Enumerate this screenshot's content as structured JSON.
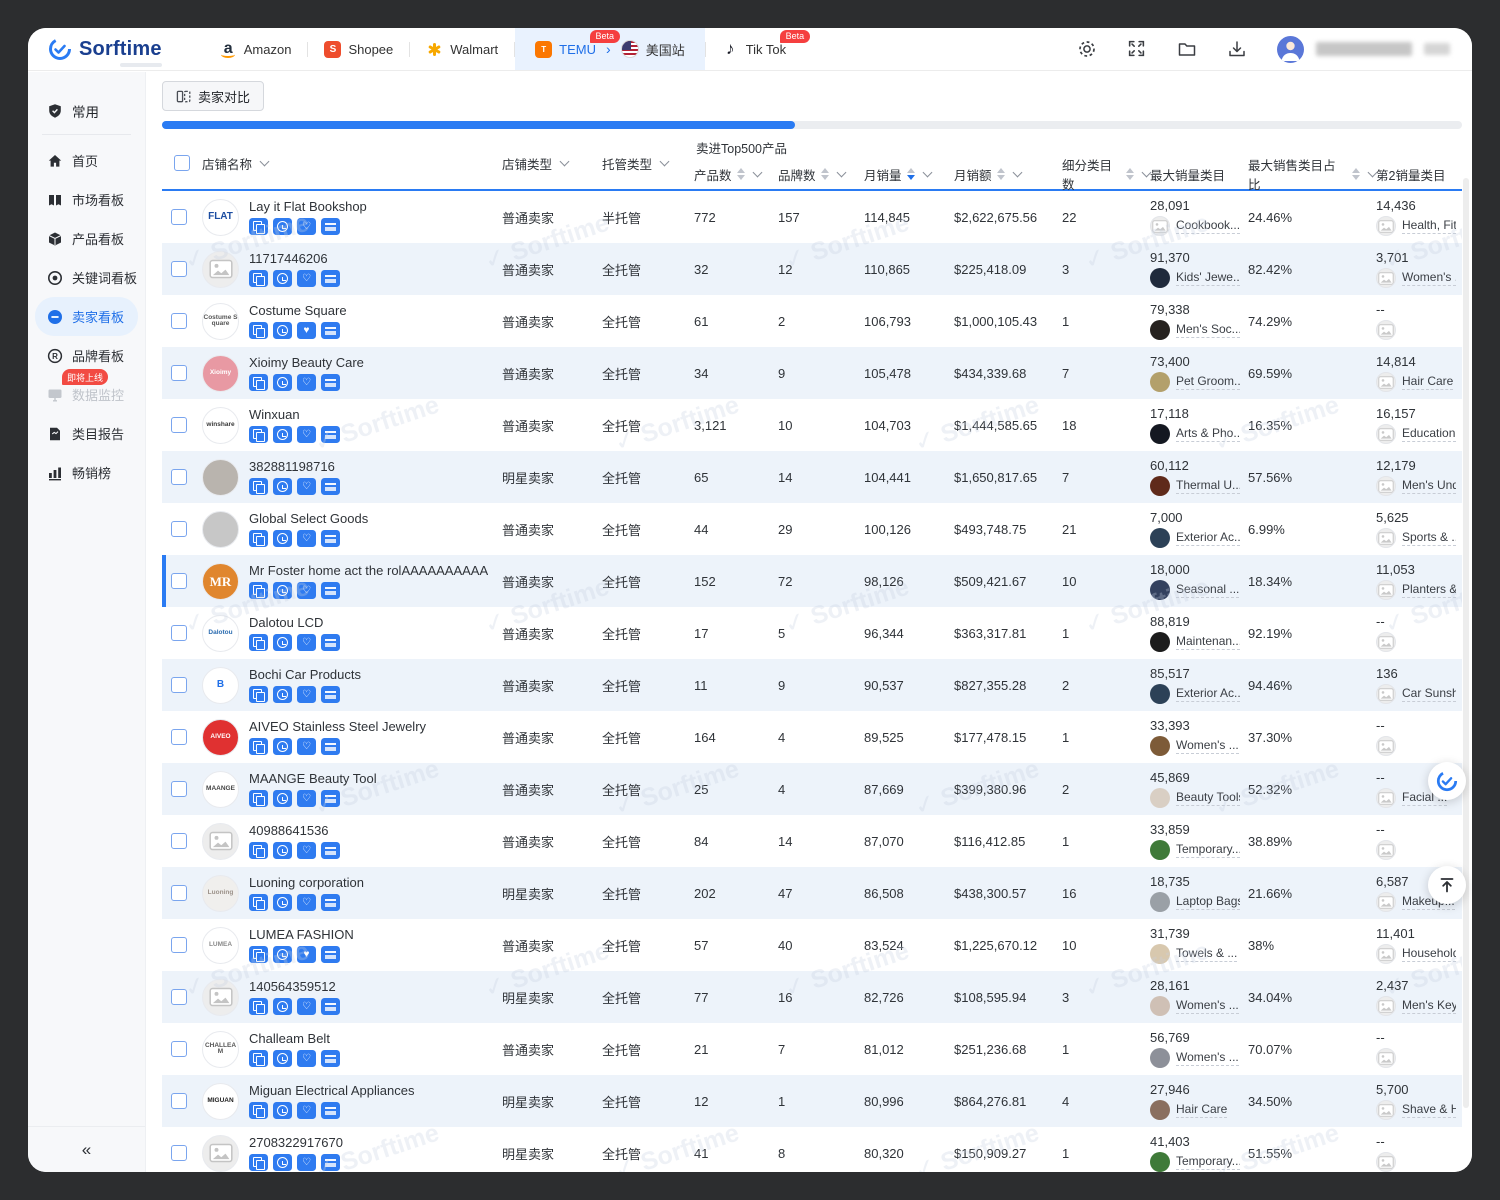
{
  "colors": {
    "accent": "#2a7bf3",
    "badge_red": "#f53f3f",
    "zebra_row": "#edf3fa",
    "temu_tab_bg": "#e9f2fe"
  },
  "header": {
    "brand": "Sorftime",
    "platforms": [
      {
        "label": "Amazon",
        "icon": "amazon"
      },
      {
        "label": "Shopee",
        "icon": "shopee"
      },
      {
        "label": "Walmart",
        "icon": "walmart"
      },
      {
        "label": "TEMU",
        "icon": "temu",
        "beta": "Beta",
        "group": "temu",
        "accent": true
      },
      {
        "label": "美国站",
        "icon": "us-flag",
        "group": "temu"
      },
      {
        "label": "Tik Tok",
        "icon": "tiktok",
        "beta": "Beta"
      }
    ],
    "actions": [
      "settings",
      "fullscreen",
      "folder",
      "download"
    ]
  },
  "sidebar": {
    "section_label": "常用",
    "items": [
      {
        "label": "首页",
        "icon": "home"
      },
      {
        "label": "市场看板",
        "icon": "market"
      },
      {
        "label": "产品看板",
        "icon": "product"
      },
      {
        "label": "关键词看板",
        "icon": "keyword"
      },
      {
        "label": "卖家看板",
        "icon": "seller",
        "active": true
      },
      {
        "label": "品牌看板",
        "icon": "brand"
      },
      {
        "label": "数据监控",
        "icon": "monitor",
        "disabled": true,
        "badge": "即将上线"
      },
      {
        "label": "类目报告",
        "icon": "report"
      },
      {
        "label": "畅销榜",
        "icon": "rank"
      }
    ],
    "collapse": "«"
  },
  "toolbar": {
    "compare": "卖家对比"
  },
  "watermark": "Sorftime",
  "table": {
    "group_header": "卖进Top500产品",
    "columns": {
      "store": "店铺名称",
      "store_type": "店铺类型",
      "managed": "托管类型",
      "products": "产品数",
      "brands": "品牌数",
      "sales": "月销量",
      "revenue": "月销额",
      "subcats": "细分类目数",
      "top_cat": "最大销量类目",
      "top_pct": "最大销售类目占比",
      "second_cat": "第2销量类目"
    },
    "sort_active": "sales",
    "row_actions": [
      "copy",
      "history",
      "favorite",
      "temu"
    ],
    "rows": [
      {
        "name": "Lay it Flat Bookshop",
        "avatar": {
          "text": "FLAT",
          "bg": "#ffffff",
          "fg": "#1c4da1"
        },
        "store_type": "普通卖家",
        "managed": "半托管",
        "products": "772",
        "brands": "157",
        "sales": "114,845",
        "revenue": "$2,622,675.56",
        "subcats": "22",
        "top": {
          "count": "28,091",
          "label": "Cookbook...",
          "thumb": "ph"
        },
        "pct": "24.46%",
        "second": {
          "count": "14,436",
          "label": "Health, Fit...",
          "thumb": "ph"
        }
      },
      {
        "name": "11717446206",
        "avatar": {
          "ph": true
        },
        "store_type": "普通卖家",
        "managed": "全托管",
        "products": "32",
        "brands": "12",
        "sales": "110,865",
        "revenue": "$225,418.09",
        "subcats": "3",
        "top": {
          "count": "91,370",
          "label": "Kids' Jewe...",
          "thumb": "#1f2a3c"
        },
        "pct": "82.42%",
        "second": {
          "count": "3,701",
          "label": "Women's ...",
          "thumb": "ph"
        }
      },
      {
        "name": "Costume Square",
        "avatar": {
          "text": "Costume Square",
          "bg": "#ffffff",
          "fg": "#555555",
          "tiny": true
        },
        "store_type": "普通卖家",
        "managed": "全托管",
        "products": "61",
        "brands": "2",
        "sales": "106,793",
        "revenue": "$1,000,105.43",
        "subcats": "1",
        "favorited": true,
        "top": {
          "count": "79,338",
          "label": "Men's Soc...",
          "thumb": "#26221f"
        },
        "pct": "74.29%",
        "second": {
          "count": "--",
          "label": "",
          "thumb": "ph"
        }
      },
      {
        "name": "Xioimy Beauty Care",
        "avatar": {
          "text": "Xioimy",
          "bg": "#e899a3",
          "fg": "#ffffff",
          "tiny": true
        },
        "store_type": "普通卖家",
        "managed": "全托管",
        "products": "34",
        "brands": "9",
        "sales": "105,478",
        "revenue": "$434,339.68",
        "subcats": "7",
        "top": {
          "count": "73,400",
          "label": "Pet Groom...",
          "thumb": "#b3a06b"
        },
        "pct": "69.59%",
        "second": {
          "count": "14,814",
          "label": "Hair Care",
          "thumb": "ph"
        }
      },
      {
        "name": "Winxuan",
        "avatar": {
          "text": "winshare",
          "bg": "#ffffff",
          "fg": "#3a3a3a",
          "tiny": true
        },
        "store_type": "普通卖家",
        "managed": "全托管",
        "products": "3,121",
        "brands": "10",
        "sales": "104,703",
        "revenue": "$1,444,585.65",
        "subcats": "18",
        "top": {
          "count": "17,118",
          "label": "Arts & Pho...",
          "thumb": "#141821"
        },
        "pct": "16.35%",
        "second": {
          "count": "16,157",
          "label": "Education ...",
          "thumb": "ph"
        }
      },
      {
        "name": "382881198716",
        "avatar": {
          "photo": "#b9b4ae"
        },
        "store_type": "明星卖家",
        "managed": "全托管",
        "products": "65",
        "brands": "14",
        "sales": "104,441",
        "revenue": "$1,650,817.65",
        "subcats": "7",
        "top": {
          "count": "60,112",
          "label": "Thermal U...",
          "thumb": "#5f2a1a"
        },
        "pct": "57.56%",
        "second": {
          "count": "12,179",
          "label": "Men's Und...",
          "thumb": "ph"
        }
      },
      {
        "name": "Global Select Goods",
        "avatar": {
          "photo": "#c7c7c7"
        },
        "store_type": "普通卖家",
        "managed": "全托管",
        "products": "44",
        "brands": "29",
        "sales": "100,126",
        "revenue": "$493,748.75",
        "subcats": "21",
        "top": {
          "count": "7,000",
          "label": "Exterior Ac...",
          "thumb": "#2c4157"
        },
        "pct": "6.99%",
        "second": {
          "count": "5,625",
          "label": "Sports & ...",
          "thumb": "ph"
        }
      },
      {
        "name": "Mr Foster home act the rolAAAAAAAAAA",
        "selected": true,
        "avatar": {
          "text": "MR",
          "bg": "#e0862e",
          "fg": "#ffffff",
          "serif": true
        },
        "store_type": "普通卖家",
        "managed": "全托管",
        "products": "152",
        "brands": "72",
        "sales": "98,126",
        "revenue": "$509,421.67",
        "subcats": "10",
        "top": {
          "count": "18,000",
          "label": "Seasonal ...",
          "thumb": "#33415f"
        },
        "pct": "18.34%",
        "second": {
          "count": "11,053",
          "label": "Planters &...",
          "thumb": "ph"
        }
      },
      {
        "name": "Dalotou LCD",
        "avatar": {
          "text": "Dalotou",
          "bg": "#ffffff",
          "fg": "#2b6cb0",
          "tiny": true
        },
        "store_type": "普通卖家",
        "managed": "全托管",
        "products": "17",
        "brands": "5",
        "sales": "96,344",
        "revenue": "$363,317.81",
        "subcats": "1",
        "top": {
          "count": "88,819",
          "label": "Maintenan...",
          "thumb": "#1c1c1c"
        },
        "pct": "92.19%",
        "second": {
          "count": "--",
          "label": "",
          "thumb": "ph"
        }
      },
      {
        "name": "Bochi Car Products",
        "avatar": {
          "text": "B",
          "bg": "#ffffff",
          "fg": "#1f6fe8"
        },
        "store_type": "普通卖家",
        "managed": "全托管",
        "products": "11",
        "brands": "9",
        "sales": "90,537",
        "revenue": "$827,355.28",
        "subcats": "2",
        "top": {
          "count": "85,517",
          "label": "Exterior Ac...",
          "thumb": "#2c4157"
        },
        "pct": "94.46%",
        "second": {
          "count": "136",
          "label": "Car Sunsh...",
          "thumb": "ph"
        }
      },
      {
        "name": "AIVEO Stainless Steel Jewelry",
        "avatar": {
          "text": "AIVEO",
          "bg": "#e03131",
          "fg": "#ffffff",
          "tiny": true
        },
        "store_type": "普通卖家",
        "managed": "全托管",
        "products": "164",
        "brands": "4",
        "sales": "89,525",
        "revenue": "$177,478.15",
        "subcats": "1",
        "top": {
          "count": "33,393",
          "label": "Women's ...",
          "thumb": "#7d5b38"
        },
        "pct": "37.30%",
        "second": {
          "count": "--",
          "label": "",
          "thumb": "ph"
        }
      },
      {
        "name": "MAANGE Beauty Tool",
        "avatar": {
          "text": "MAANGE",
          "bg": "#ffffff",
          "fg": "#444444",
          "tiny": true
        },
        "store_type": "普通卖家",
        "managed": "全托管",
        "products": "25",
        "brands": "4",
        "sales": "87,669",
        "revenue": "$399,380.96",
        "subcats": "2",
        "top": {
          "count": "45,869",
          "label": "Beauty Tools",
          "thumb": "#d9cfc4"
        },
        "pct": "52.32%",
        "second": {
          "count": "--",
          "label": "Facial ...",
          "thumb": "ph"
        }
      },
      {
        "name": "40988641536",
        "avatar": {
          "ph": true
        },
        "store_type": "普通卖家",
        "managed": "全托管",
        "products": "84",
        "brands": "14",
        "sales": "87,070",
        "revenue": "$116,412.85",
        "subcats": "1",
        "top": {
          "count": "33,859",
          "label": "Temporary...",
          "thumb": "#3f7a39"
        },
        "pct": "38.89%",
        "second": {
          "count": "--",
          "label": "",
          "thumb": "ph"
        }
      },
      {
        "name": "Luoning corporation",
        "avatar": {
          "text": "Luoning",
          "bg": "#f0efed",
          "fg": "#9b9189",
          "tiny": true
        },
        "store_type": "明星卖家",
        "managed": "全托管",
        "products": "202",
        "brands": "47",
        "sales": "86,508",
        "revenue": "$438,300.57",
        "subcats": "16",
        "top": {
          "count": "18,735",
          "label": "Laptop Bags",
          "thumb": "#9aa0a6"
        },
        "pct": "21.66%",
        "second": {
          "count": "6,587",
          "label": "Makeup...",
          "thumb": "ph"
        }
      },
      {
        "name": "LUMEA FASHION",
        "avatar": {
          "text": "LUMEA",
          "bg": "#ffffff",
          "fg": "#8a8a8a",
          "tiny": true
        },
        "store_type": "普通卖家",
        "managed": "全托管",
        "products": "57",
        "brands": "40",
        "sales": "83,524",
        "revenue": "$1,225,670.12",
        "subcats": "10",
        "favorited": true,
        "top": {
          "count": "31,739",
          "label": "Towels & ...",
          "thumb": "#d8c8ae"
        },
        "pct": "38%",
        "second": {
          "count": "11,401",
          "label": "Household...",
          "thumb": "ph"
        }
      },
      {
        "name": "140564359512",
        "avatar": {
          "ph": true
        },
        "store_type": "明星卖家",
        "managed": "全托管",
        "products": "77",
        "brands": "16",
        "sales": "82,726",
        "revenue": "$108,595.94",
        "subcats": "3",
        "top": {
          "count": "28,161",
          "label": "Women's ...",
          "thumb": "#cfc0b5"
        },
        "pct": "34.04%",
        "second": {
          "count": "2,437",
          "label": "Men's Key...",
          "thumb": "ph"
        }
      },
      {
        "name": "Challeam Belt",
        "avatar": {
          "text": "CHALLEAM",
          "bg": "#ffffff",
          "fg": "#555555",
          "tiny": true
        },
        "store_type": "普通卖家",
        "managed": "全托管",
        "products": "21",
        "brands": "7",
        "sales": "81,012",
        "revenue": "$251,236.68",
        "subcats": "1",
        "top": {
          "count": "56,769",
          "label": "Women's ...",
          "thumb": "#8d9099"
        },
        "pct": "70.07%",
        "second": {
          "count": "--",
          "label": "",
          "thumb": "ph"
        }
      },
      {
        "name": "Miguan Electrical Appliances",
        "avatar": {
          "text": "MIGUAN",
          "bg": "#ffffff",
          "fg": "#222222",
          "tiny": true
        },
        "store_type": "明星卖家",
        "managed": "全托管",
        "products": "12",
        "brands": "1",
        "sales": "80,996",
        "revenue": "$864,276.81",
        "subcats": "4",
        "top": {
          "count": "27,946",
          "label": "Hair Care",
          "thumb": "#8a6f5f"
        },
        "pct": "34.50%",
        "second": {
          "count": "5,700",
          "label": "Shave & H...",
          "thumb": "ph"
        }
      },
      {
        "name": "2708322917670",
        "avatar": {
          "ph": true
        },
        "store_type": "明星卖家",
        "managed": "全托管",
        "products": "41",
        "brands": "8",
        "sales": "80,320",
        "revenue": "$150,909.27",
        "subcats": "1",
        "top": {
          "count": "41,403",
          "label": "Temporary...",
          "thumb": "#3f7a39"
        },
        "pct": "51.55%",
        "second": {
          "count": "--",
          "label": "",
          "thumb": "ph"
        }
      }
    ]
  }
}
